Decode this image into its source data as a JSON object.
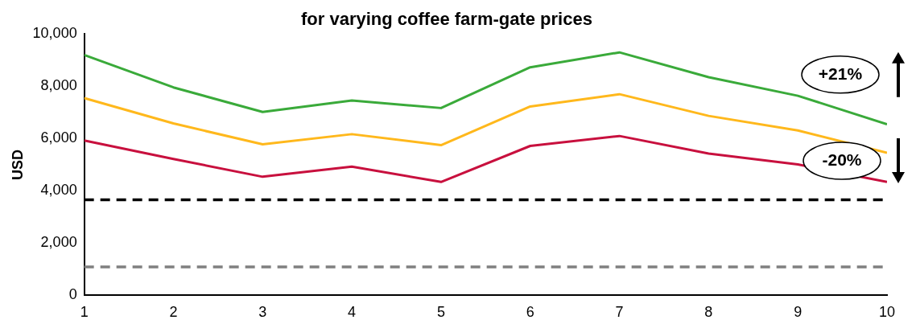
{
  "chart_data": {
    "type": "line",
    "title": "for varying coffee farm-gate prices",
    "ylabel": "USD",
    "x": [
      1,
      2,
      3,
      4,
      5,
      6,
      7,
      8,
      9,
      10
    ],
    "xlim": [
      1,
      10
    ],
    "xticks": [
      1,
      2,
      3,
      4,
      5,
      6,
      7,
      8,
      9,
      10
    ],
    "ylim": [
      0,
      10000
    ],
    "yticks": [
      0,
      {
        "value": 2000,
        "label": "2,000"
      },
      {
        "value": 4000,
        "label": "4,000"
      },
      {
        "value": 6000,
        "label": "6,000"
      },
      {
        "value": 8000,
        "label": "8,000"
      },
      {
        "value": 10000,
        "label": "10,000"
      }
    ],
    "series": [
      {
        "color": "#3aaa3a",
        "values": [
          9200,
          7960,
          7020,
          7460,
          7170,
          8730,
          9300,
          8350,
          7640,
          6550
        ]
      },
      {
        "color": "#ffb81c",
        "values": [
          7550,
          6580,
          5780,
          6170,
          5750,
          7230,
          7700,
          6870,
          6310,
          5460
        ]
      },
      {
        "color": "#c8103e",
        "values": [
          5930,
          5220,
          4540,
          4930,
          4340,
          5720,
          6100,
          5430,
          5010,
          4340
        ]
      }
    ],
    "ref_lines": [
      {
        "axis": "y",
        "value": 3660,
        "color": "#000000",
        "line_style": "dashed"
      },
      {
        "axis": "y",
        "value": 1090,
        "color": "#808080",
        "line_style": "dashed"
      }
    ],
    "annotations": [
      "+21%",
      "-20%"
    ],
    "grid": false,
    "legend": false,
    "marker": "none",
    "line_style": "solid"
  }
}
